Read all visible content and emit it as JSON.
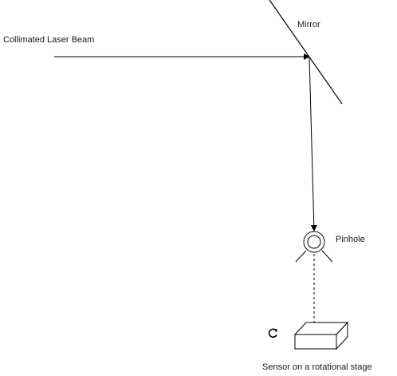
{
  "labels": {
    "laser_beam": "Collimated Laser Beam",
    "mirror": "Mirror",
    "pinhole": "Pinhole",
    "sensor": "Sensor on a rotational stage"
  },
  "icons": {
    "rotation": "rotate-clockwise-icon"
  },
  "colors": {
    "line": "#000000",
    "text": "#1a1a1a",
    "background": "#ffffff"
  }
}
